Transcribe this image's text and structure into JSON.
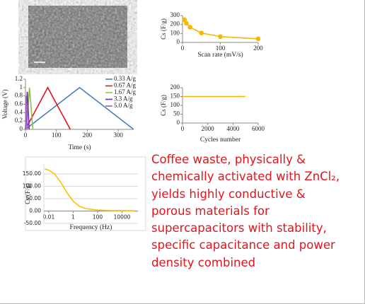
{
  "chart_data": [
    {
      "type": "line",
      "markers": true,
      "x_label": "Scan rate (mV/s)",
      "y_label": "Cs (F/g)",
      "x": [
        5,
        10,
        20,
        50,
        100,
        200
      ],
      "series": [
        {
          "color": "#f5b700",
          "values": [
            255,
            215,
            170,
            105,
            65,
            40
          ]
        }
      ],
      "xlim": [
        0,
        200
      ],
      "xticks": [
        0,
        100,
        200
      ],
      "ylim": [
        0,
        300
      ],
      "yticks": [
        0,
        100,
        200,
        300
      ]
    },
    {
      "type": "line",
      "x_label": "Time (s)",
      "y_label": "Voltage (V)",
      "series": [
        {
          "name": "0.33 A/g",
          "color": "#4a7ebb",
          "x": [
            0,
            175,
            350
          ],
          "values": [
            0,
            1,
            0
          ]
        },
        {
          "name": "0.67 A/g",
          "color": "#e0141e",
          "x": [
            0,
            72,
            145
          ],
          "values": [
            0,
            1,
            0
          ]
        },
        {
          "name": "1.67 A/g",
          "color": "#8cc152",
          "x": [
            3,
            13,
            24
          ],
          "values": [
            0,
            1,
            0
          ]
        },
        {
          "name": "3.3 A/g",
          "color": "#7030a0",
          "x": [
            0,
            6,
            12
          ],
          "values": [
            0,
            0.9,
            0
          ]
        },
        {
          "name": "5.0 A/g",
          "color": "#9b5fc0",
          "x": [
            0,
            3,
            6
          ],
          "values": [
            0,
            0.8,
            0
          ]
        }
      ],
      "xlim": [
        0,
        350
      ],
      "xticks": [
        0,
        100,
        200,
        300
      ],
      "ylim": [
        0,
        1.2
      ],
      "yticks": [
        0,
        0.2,
        0.4,
        0.6,
        0.8,
        1,
        1.2
      ],
      "legend": "right"
    },
    {
      "type": "line",
      "x_label": "Cycles number",
      "y_label": "Cs (F/g)",
      "x": [
        0,
        5000
      ],
      "series": [
        {
          "color": "#f5b700",
          "values": [
            150,
            150
          ]
        }
      ],
      "xlim": [
        0,
        6000
      ],
      "xticks": [
        0,
        2000,
        4000,
        6000
      ],
      "ylim": [
        0,
        200
      ],
      "yticks": [
        0,
        50,
        100,
        150,
        200
      ]
    },
    {
      "type": "line",
      "x_label": "Frequency (Hz)",
      "y_label": "Cs (F/g)",
      "xscale": "log",
      "grid": true,
      "x": [
        0.005,
        0.01,
        0.03,
        0.1,
        0.3,
        1,
        3,
        10,
        100,
        1000,
        100000
      ],
      "series": [
        {
          "color": "#ffc000",
          "values": [
            170,
            165,
            150,
            115,
            75,
            40,
            20,
            10,
            4,
            2,
            1
          ]
        }
      ],
      "xlim": [
        0.004,
        200000
      ],
      "xticks": [
        0.01,
        1,
        100,
        10000
      ],
      "ylim": [
        -50,
        190
      ],
      "yticks": [
        {
          "value": -50,
          "label": "-50.00"
        },
        {
          "value": 0,
          "label": "0.00"
        },
        {
          "value": 50,
          "label": "50.00"
        },
        {
          "value": 100,
          "label": "100.00"
        },
        {
          "value": 150,
          "label": "150.00"
        }
      ]
    }
  ],
  "caption_lines": [
    "Coffee waste, physically &",
    "chemically activated with ZnCl₂,",
    "yields highly conductive &",
    "porous materials for",
    "supercapacitors with stability,",
    "specific capacitance and power",
    "density combined"
  ]
}
